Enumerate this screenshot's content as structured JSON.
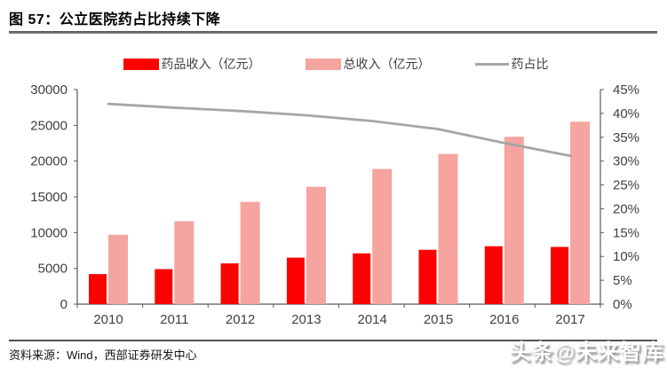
{
  "header": {
    "title": "图 57：公立医院药占比持续下降"
  },
  "legend": {
    "items": [
      {
        "label": "药品收入（亿元）",
        "type": "swatch",
        "color": "#fe0000"
      },
      {
        "label": "总收入（亿元）",
        "type": "swatch",
        "color": "#f5a4a0"
      },
      {
        "label": "药占比",
        "type": "line",
        "color": "#a6a6a6"
      }
    ]
  },
  "chart_data": {
    "type": "bar",
    "subtype": "grouped bars with secondary-axis line",
    "title": "公立医院药占比持续下降",
    "categories": [
      "2010",
      "2011",
      "2012",
      "2013",
      "2014",
      "2015",
      "2016",
      "2017"
    ],
    "series": [
      {
        "name": "药品收入（亿元）",
        "type": "bar",
        "axis": "left",
        "color": "#fe0000",
        "values": [
          4200,
          4900,
          5700,
          6500,
          7100,
          7600,
          8100,
          8000
        ]
      },
      {
        "name": "总收入（亿元）",
        "type": "bar",
        "axis": "left",
        "color": "#f5a4a0",
        "values": [
          9700,
          11600,
          14300,
          16400,
          18900,
          21000,
          23400,
          25500
        ]
      },
      {
        "name": "药占比",
        "type": "line",
        "axis": "right",
        "color": "#a6a6a6",
        "values": [
          42,
          41.2,
          40.5,
          39.6,
          38.4,
          36.7,
          33.8,
          31.1
        ]
      }
    ],
    "left_axis": {
      "min": 0,
      "max": 30000,
      "step": 5000,
      "unit": "",
      "tick_labels": [
        "0",
        "5000",
        "10000",
        "15000",
        "20000",
        "25000",
        "30000"
      ]
    },
    "right_axis": {
      "min": 0,
      "max": 45,
      "step": 5,
      "unit": "%",
      "tick_labels": [
        "0%",
        "5%",
        "10%",
        "15%",
        "20%",
        "25%",
        "30%",
        "35%",
        "40%",
        "45%"
      ]
    },
    "grid": false,
    "legend_position": "top",
    "axis_text_color": "#404040",
    "axis_line_color": "#595959"
  },
  "footer": {
    "source": "资料来源：Wind，西部证券研发中心"
  },
  "watermark": {
    "text": "头条@未来智库"
  }
}
